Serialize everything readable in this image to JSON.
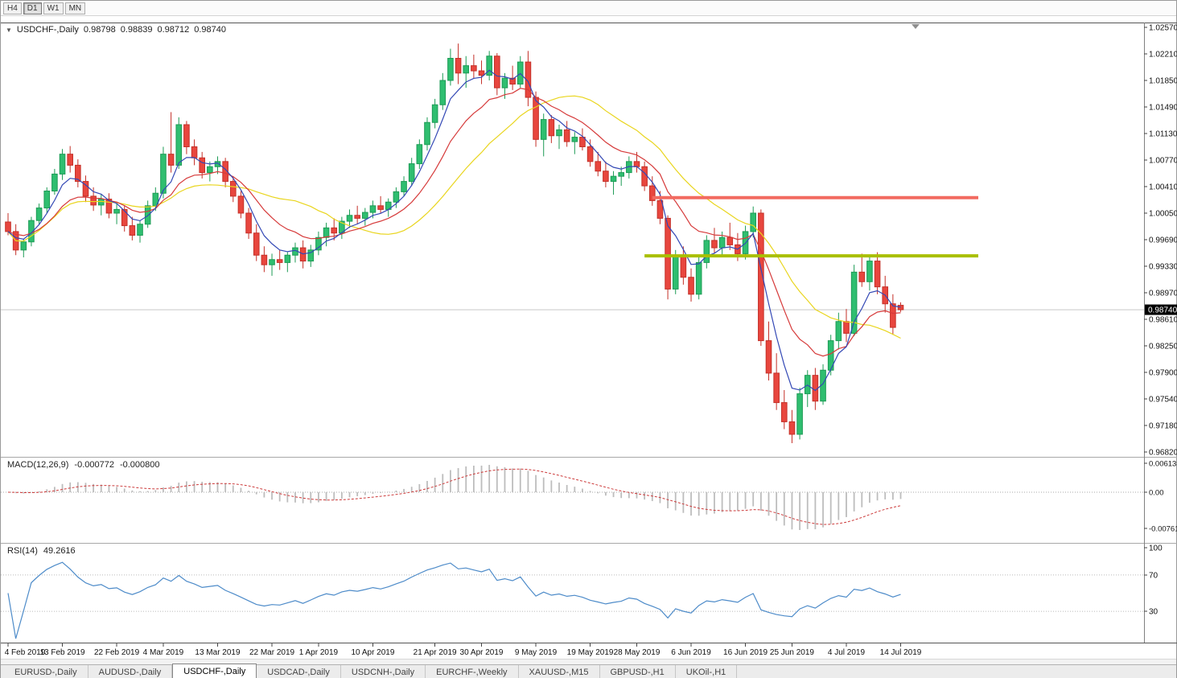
{
  "toolbar": {
    "timeframes": [
      {
        "label": "H4",
        "active": false
      },
      {
        "label": "D1",
        "active": true
      },
      {
        "label": "W1",
        "active": false
      },
      {
        "label": "MN",
        "active": false
      }
    ]
  },
  "chart_header": {
    "collapse_icon": "▼",
    "symbol": "USDCHF-,Daily",
    "open": "0.98798",
    "high": "0.98839",
    "low": "0.98712",
    "close": "0.98740"
  },
  "macd_header": {
    "label": "MACD(12,26,9)",
    "value_main": "-0.000772",
    "value_signal": "-0.000800"
  },
  "rsi_header": {
    "label": "RSI(14)",
    "value": "49.2616"
  },
  "chart_data": {
    "type": "candlestick",
    "symbol": "USDCHF",
    "timeframe": "Daily",
    "y_range": [
      0.9682,
      1.0257
    ],
    "price_scale_labels": [
      "1.02570",
      "1.02210",
      "1.01850",
      "1.01490",
      "1.01130",
      "1.00770",
      "1.00410",
      "1.00050",
      "0.99690",
      "0.99330",
      "0.98970",
      "0.98610",
      "0.98250",
      "0.97900",
      "0.97540",
      "0.97180",
      "0.96820"
    ],
    "current_price": {
      "value": 0.9874,
      "label": "0.98740"
    },
    "colors": {
      "up": "#2fbe70",
      "up_border": "#1d9b55",
      "down": "#e8463e",
      "down_border": "#c43028",
      "price_line": "#c9c9c9",
      "badge_bg": "#000000",
      "badge_text": "#ffffff"
    },
    "overlays": {
      "moving_averages": [
        {
          "name": "ma-fast",
          "period": 5,
          "method": "ema",
          "color": "#3348b5"
        },
        {
          "name": "ma-medium",
          "period": 12,
          "method": "ema",
          "color": "#d63a3a"
        },
        {
          "name": "ma-slow",
          "period": 20,
          "method": "sma",
          "color": "#e9d51d"
        }
      ],
      "hlines": [
        {
          "name": "resistance-line",
          "price": 1.0026,
          "color": "#f26a60",
          "from_index": 83,
          "to_index": 125
        },
        {
          "name": "support-line",
          "price": 0.9947,
          "color": "#a9bf00",
          "from_index": 82,
          "to_index": 125
        }
      ]
    },
    "indicators": {
      "macd": {
        "params": {
          "fast": 12,
          "slow": 26,
          "signal": 9
        },
        "histogram_color": "#bdbdbd",
        "signal_color": "#cc3a3a",
        "scale_labels": [
          "0.00613",
          "0.00",
          "-0.00761"
        ]
      },
      "rsi": {
        "period": 14,
        "line_color": "#4d8bc9",
        "levels": [
          70,
          30
        ],
        "scale_labels": [
          "100",
          "70",
          "30"
        ]
      }
    },
    "x_labels": [
      {
        "label": "4 Feb 2019",
        "index": 0
      },
      {
        "label": "13 Feb 2019",
        "index": 7
      },
      {
        "label": "22 Feb 2019",
        "index": 14
      },
      {
        "label": "4 Mar 2019",
        "index": 20
      },
      {
        "label": "13 Mar 2019",
        "index": 27
      },
      {
        "label": "22 Mar 2019",
        "index": 34
      },
      {
        "label": "1 Apr 2019",
        "index": 40
      },
      {
        "label": "10 Apr 2019",
        "index": 47
      },
      {
        "label": "21 Apr 2019",
        "index": 55
      },
      {
        "label": "30 Apr 2019",
        "index": 61
      },
      {
        "label": "9 May 2019",
        "index": 68
      },
      {
        "label": "19 May 2019",
        "index": 75
      },
      {
        "label": "28 May 2019",
        "index": 81
      },
      {
        "label": "6 Jun 2019",
        "index": 88
      },
      {
        "label": "16 Jun 2019",
        "index": 95
      },
      {
        "label": "25 Jun 2019",
        "index": 101
      },
      {
        "label": "4 Jul 2019",
        "index": 108
      },
      {
        "label": "14 Jul 2019",
        "index": 115
      }
    ],
    "candles": [
      [
        0.9993,
        1.0005,
        0.9975,
        0.998
      ],
      [
        0.998,
        0.999,
        0.9948,
        0.9955
      ],
      [
        0.9955,
        0.997,
        0.9945,
        0.9966
      ],
      [
        0.9966,
        1.0,
        0.996,
        0.9995
      ],
      [
        0.9995,
        1.0018,
        0.999,
        1.0012
      ],
      [
        1.0012,
        1.004,
        1.0005,
        1.0035
      ],
      [
        1.0035,
        1.0065,
        1.003,
        1.0058
      ],
      [
        1.0058,
        1.0092,
        1.005,
        1.0085
      ],
      [
        1.0085,
        1.0096,
        1.006,
        1.007
      ],
      [
        1.007,
        1.0078,
        1.004,
        1.0048
      ],
      [
        1.0048,
        1.0056,
        1.002,
        1.0028
      ],
      [
        1.0028,
        1.004,
        1.0008,
        1.0016
      ],
      [
        1.0016,
        1.003,
        1.0002,
        1.0024
      ],
      [
        1.0024,
        1.0032,
        0.9998,
        1.0005
      ],
      [
        1.0005,
        1.0018,
        0.999,
        1.001
      ],
      [
        1.001,
        1.0015,
        0.998,
        0.9988
      ],
      [
        0.9988,
        1.0,
        0.9968,
        0.9975
      ],
      [
        0.9975,
        0.9995,
        0.9965,
        0.999
      ],
      [
        0.999,
        1.0022,
        0.9985,
        1.0015
      ],
      [
        1.0015,
        1.004,
        1.0008,
        1.0032
      ],
      [
        1.0032,
        1.0095,
        1.0025,
        1.0085
      ],
      [
        1.0085,
        1.0142,
        1.006,
        1.007
      ],
      [
        1.007,
        1.0135,
        1.0065,
        1.0125
      ],
      [
        1.0125,
        1.013,
        1.0085,
        1.0095
      ],
      [
        1.0095,
        1.0105,
        1.007,
        1.008
      ],
      [
        1.008,
        1.0088,
        1.0052,
        1.006
      ],
      [
        1.006,
        1.0075,
        1.0048,
        1.0068
      ],
      [
        1.0068,
        1.0082,
        1.0058,
        1.0075
      ],
      [
        1.0075,
        1.008,
        1.004,
        1.0048
      ],
      [
        1.0048,
        1.0055,
        1.002,
        1.0028
      ],
      [
        1.0028,
        1.0035,
        0.9998,
        1.0005
      ],
      [
        1.0005,
        1.0012,
        0.997,
        0.9978
      ],
      [
        0.9978,
        0.999,
        0.994,
        0.9948
      ],
      [
        0.9948,
        0.996,
        0.9925,
        0.9935
      ],
      [
        0.9935,
        0.995,
        0.992,
        0.9942
      ],
      [
        0.9942,
        0.9955,
        0.9928,
        0.9938
      ],
      [
        0.9938,
        0.9952,
        0.9925,
        0.9948
      ],
      [
        0.9948,
        0.9965,
        0.9938,
        0.9958
      ],
      [
        0.9958,
        0.9968,
        0.993,
        0.994
      ],
      [
        0.994,
        0.9962,
        0.9932,
        0.9955
      ],
      [
        0.9955,
        0.998,
        0.9948,
        0.9972
      ],
      [
        0.9972,
        0.9992,
        0.996,
        0.9985
      ],
      [
        0.9985,
        0.9998,
        0.9968,
        0.9978
      ],
      [
        0.9978,
        1.0,
        0.997,
        0.9994
      ],
      [
        0.9994,
        1.001,
        0.9985,
        1.0002
      ],
      [
        1.0002,
        1.0015,
        0.999,
        0.9998
      ],
      [
        0.9998,
        1.0012,
        0.9988,
        1.0006
      ],
      [
        1.0006,
        1.0022,
        0.9998,
        1.0015
      ],
      [
        1.0015,
        1.0028,
        1.0005,
        1.001
      ],
      [
        1.001,
        1.0025,
        1.0,
        1.002
      ],
      [
        1.002,
        1.004,
        1.0012,
        1.0034
      ],
      [
        1.0034,
        1.0055,
        1.0028,
        1.0048
      ],
      [
        1.0048,
        1.008,
        1.0042,
        1.0072
      ],
      [
        1.0072,
        1.0105,
        1.0065,
        1.0098
      ],
      [
        1.0098,
        1.0135,
        1.009,
        1.0128
      ],
      [
        1.0128,
        1.016,
        1.012,
        1.0152
      ],
      [
        1.0152,
        1.0195,
        1.0145,
        1.0185
      ],
      [
        1.0185,
        1.0228,
        1.0178,
        1.0215
      ],
      [
        1.0215,
        1.0235,
        1.018,
        1.0195
      ],
      [
        1.0195,
        1.0218,
        1.0175,
        1.0205
      ],
      [
        1.0205,
        1.022,
        1.0188,
        1.0198
      ],
      [
        1.0198,
        1.0212,
        1.018,
        1.0192
      ],
      [
        1.0192,
        1.0225,
        1.0185,
        1.0218
      ],
      [
        1.0218,
        1.0222,
        1.0165,
        1.0175
      ],
      [
        1.0175,
        1.0195,
        1.016,
        1.0188
      ],
      [
        1.0188,
        1.0205,
        1.0172,
        1.018
      ],
      [
        1.018,
        1.0218,
        1.0175,
        1.021
      ],
      [
        1.021,
        1.0225,
        1.015,
        1.0162
      ],
      [
        1.0162,
        1.017,
        1.0095,
        1.0105
      ],
      [
        1.0105,
        1.014,
        1.0082,
        1.0132
      ],
      [
        1.0132,
        1.0138,
        1.01,
        1.011
      ],
      [
        1.011,
        1.0125,
        1.0092,
        1.0118
      ],
      [
        1.0118,
        1.013,
        1.0095,
        1.0102
      ],
      [
        1.0102,
        1.0115,
        1.0085,
        1.0108
      ],
      [
        1.0108,
        1.012,
        1.009,
        1.0095
      ],
      [
        1.0095,
        1.0105,
        1.0068,
        1.0075
      ],
      [
        1.0075,
        1.0088,
        1.0055,
        1.0062
      ],
      [
        1.0062,
        1.0075,
        1.004,
        1.0048
      ],
      [
        1.0048,
        1.0062,
        1.003,
        1.0055
      ],
      [
        1.0055,
        1.0068,
        1.0042,
        1.006
      ],
      [
        1.006,
        1.0082,
        1.0052,
        1.0075
      ],
      [
        1.0075,
        1.0088,
        1.006,
        1.0068
      ],
      [
        1.0068,
        1.0075,
        1.0035,
        1.0042
      ],
      [
        1.0042,
        1.0055,
        1.0015,
        1.0022
      ],
      [
        1.0022,
        1.0035,
        0.999,
        0.9998
      ],
      [
        0.9998,
        1.0002,
        0.9888,
        0.9902
      ],
      [
        0.9902,
        0.9955,
        0.9895,
        0.9948
      ],
      [
        0.9948,
        0.996,
        0.9908,
        0.9918
      ],
      [
        0.9918,
        0.993,
        0.9885,
        0.9895
      ],
      [
        0.9895,
        0.9945,
        0.9888,
        0.9938
      ],
      [
        0.9938,
        0.9975,
        0.993,
        0.9968
      ],
      [
        0.9968,
        0.9985,
        0.995,
        0.9958
      ],
      [
        0.9958,
        0.998,
        0.9945,
        0.9972
      ],
      [
        0.9972,
        0.9992,
        0.9955,
        0.9962
      ],
      [
        0.9962,
        0.9978,
        0.994,
        0.995
      ],
      [
        0.995,
        0.9988,
        0.9942,
        0.998
      ],
      [
        0.998,
        1.0014,
        0.9972,
        1.0005
      ],
      [
        1.0005,
        1.001,
        0.9825,
        0.9832
      ],
      [
        0.9832,
        0.9858,
        0.9778,
        0.9788
      ],
      [
        0.9788,
        0.9815,
        0.9738,
        0.9748
      ],
      [
        0.9748,
        0.9765,
        0.9712,
        0.9722
      ],
      [
        0.9722,
        0.9738,
        0.9693,
        0.9705
      ],
      [
        0.9705,
        0.9768,
        0.9698,
        0.976
      ],
      [
        0.976,
        0.9792,
        0.9742,
        0.9785
      ],
      [
        0.9785,
        0.9795,
        0.9738,
        0.975
      ],
      [
        0.975,
        0.98,
        0.9745,
        0.9792
      ],
      [
        0.9792,
        0.984,
        0.9785,
        0.9832
      ],
      [
        0.9832,
        0.987,
        0.982,
        0.9858
      ],
      [
        0.9858,
        0.9875,
        0.983,
        0.9842
      ],
      [
        0.9842,
        0.9935,
        0.9838,
        0.9925
      ],
      [
        0.9925,
        0.995,
        0.9905,
        0.9912
      ],
      [
        0.9912,
        0.9948,
        0.99,
        0.994
      ],
      [
        0.994,
        0.9952,
        0.9895,
        0.9905
      ],
      [
        0.9905,
        0.992,
        0.987,
        0.9882
      ],
      [
        0.9882,
        0.9895,
        0.984,
        0.985
      ],
      [
        0.988,
        0.9884,
        0.9871,
        0.9874
      ]
    ]
  },
  "tabs": [
    {
      "label": "EURUSD-,Daily",
      "active": false
    },
    {
      "label": "AUDUSD-,Daily",
      "active": false
    },
    {
      "label": "USDCHF-,Daily",
      "active": true
    },
    {
      "label": "USDCAD-,Daily",
      "active": false
    },
    {
      "label": "USDCNH-,Daily",
      "active": false
    },
    {
      "label": "EURCHF-,Weekly",
      "active": false
    },
    {
      "label": "XAUUSD-,M15",
      "active": false
    },
    {
      "label": "GBPUSD-,H1",
      "active": false
    },
    {
      "label": "UKOil-,H1",
      "active": false
    }
  ]
}
